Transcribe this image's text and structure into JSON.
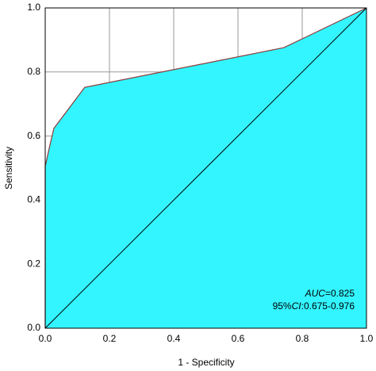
{
  "chart_data": {
    "type": "line",
    "x_label": "1 - Specificity",
    "y_label": "Sensitivity",
    "x": [
      0,
      0,
      0.012,
      0.027,
      0.123,
      0.743,
      1
    ],
    "values": [
      0,
      0.505,
      0.56,
      0.624,
      0.752,
      0.876,
      1
    ],
    "color": "#8b3a3a",
    "fill": "#33f5ff",
    "diagonal": {
      "x": [
        0,
        1
      ],
      "values": [
        0,
        1
      ],
      "color": "#000000"
    },
    "xlim": [
      0,
      1
    ],
    "ylim": [
      0,
      1
    ],
    "xticks": [
      {
        "value": 0,
        "label": "0.0"
      },
      {
        "value": 0.2,
        "label": "0.2"
      },
      {
        "value": 0.4,
        "label": "0.4"
      },
      {
        "value": 0.6,
        "label": "0.6"
      },
      {
        "value": 0.8,
        "label": "0.8"
      },
      {
        "value": 1,
        "label": "1.0"
      }
    ],
    "yticks": [
      {
        "value": 0,
        "label": "0.0"
      },
      {
        "value": 0.2,
        "label": "0.2"
      },
      {
        "value": 0.4,
        "label": "0.4"
      },
      {
        "value": 0.6,
        "label": "0.6"
      },
      {
        "value": 0.8,
        "label": "0.8"
      },
      {
        "value": 1,
        "label": "1.0"
      }
    ],
    "grid": true,
    "annotations": [
      [
        "AUC",
        "=0.825"
      ],
      [
        "95%",
        "CI",
        ":0.675-0.976"
      ]
    ]
  }
}
